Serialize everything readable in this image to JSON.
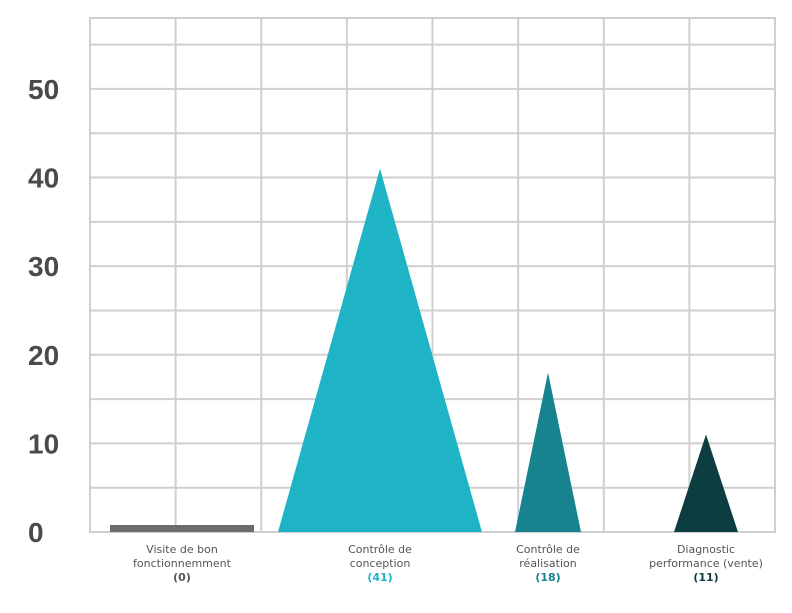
{
  "chart_data": {
    "type": "bar",
    "title": "",
    "xlabel": "",
    "ylabel": "",
    "ylim": [
      0,
      58
    ],
    "yticks": [
      0,
      10,
      20,
      30,
      40,
      50
    ],
    "grid": true,
    "categories": [
      {
        "lines": [
          "Visite de bon",
          "fonctionnemment"
        ],
        "value_label": "(0)",
        "value": 0,
        "color": "#6b6b6b",
        "label_color": "#555555"
      },
      {
        "lines": [
          "Contrôle de",
          "conception"
        ],
        "value_label": "(41)",
        "value": 41,
        "color": "#1fb3c6",
        "label_color": "#1fb3c6"
      },
      {
        "lines": [
          "Contrôle de",
          "réalisation"
        ],
        "value_label": "(18)",
        "value": 18,
        "color": "#17838f",
        "label_color": "#17838f"
      },
      {
        "lines": [
          "Diagnostic",
          "performance (vente)"
        ],
        "value_label": "(11)",
        "value": 11,
        "color": "#0c3d40",
        "label_color": "#0c3d40"
      }
    ]
  },
  "colors": {
    "grid": "#cfcfcf",
    "axis_text": "#4a4a4a"
  }
}
